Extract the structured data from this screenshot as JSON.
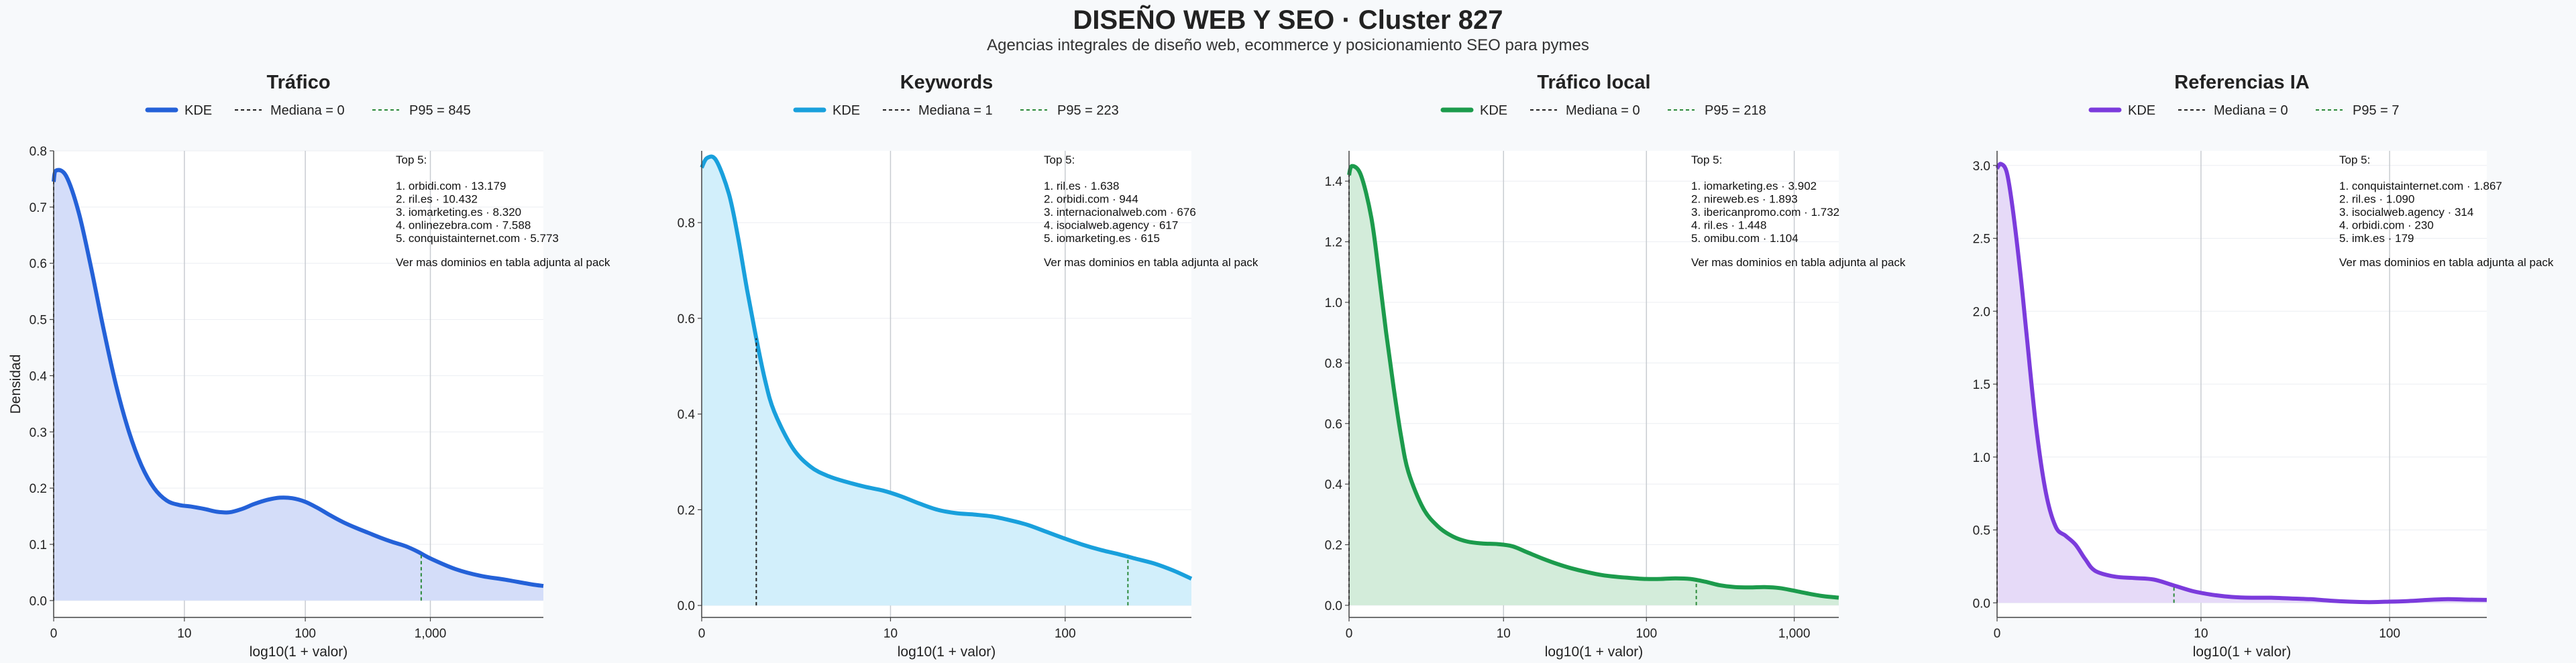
{
  "title": "DISEÑO WEB Y SEO · Cluster 827",
  "subtitle": "Agencias integrales de diseño web, ecommerce y posicionamiento SEO para pymes",
  "y_axis_label": "Densidad",
  "legend_labels": {
    "kde": "KDE"
  },
  "chart_data": [
    {
      "type": "area",
      "title": "Tráfico",
      "xlabel": "log10(1 + valor)",
      "ylabel": "Densidad",
      "xlim": [
        0,
        3.9
      ],
      "ylim": [
        -0.03,
        0.8
      ],
      "yticks": [
        0.0,
        0.1,
        0.2,
        0.3,
        0.4,
        0.5,
        0.6,
        0.7,
        0.8
      ],
      "ytick_labels": [
        "0.0",
        "0.1",
        "0.2",
        "0.3",
        "0.4",
        "0.5",
        "0.6",
        "0.7",
        "0.8"
      ],
      "xticks": [
        0,
        1.041,
        2.004,
        3.0
      ],
      "xtick_labels": [
        "0",
        "10",
        "100",
        "1,000"
      ],
      "color": "#2461d8",
      "fill": "#d4ddf9",
      "kde": {
        "x": [
          0,
          0.02,
          0.1,
          0.2,
          0.3,
          0.4,
          0.5,
          0.6,
          0.7,
          0.8,
          0.9,
          1.0,
          1.1,
          1.2,
          1.3,
          1.4,
          1.5,
          1.6,
          1.7,
          1.8,
          1.9,
          2.0,
          2.1,
          2.2,
          2.3,
          2.4,
          2.5,
          2.6,
          2.7,
          2.8,
          2.9,
          3.0,
          3.2,
          3.4,
          3.6,
          3.8,
          3.9
        ],
        "y": [
          0.745,
          0.765,
          0.755,
          0.69,
          0.59,
          0.48,
          0.38,
          0.3,
          0.24,
          0.2,
          0.178,
          0.17,
          0.167,
          0.163,
          0.158,
          0.157,
          0.163,
          0.172,
          0.179,
          0.183,
          0.182,
          0.176,
          0.165,
          0.152,
          0.14,
          0.13,
          0.121,
          0.112,
          0.104,
          0.097,
          0.087,
          0.075,
          0.056,
          0.044,
          0.037,
          0.029,
          0.026
        ]
      },
      "median": {
        "label": "Mediana = 0",
        "value": 0
      },
      "p95": {
        "label": "P95 = 845",
        "value": 2.927
      },
      "top_title": "Top 5:",
      "top": [
        "1. orbidi.com · 13.179",
        "2. ril.es · 10.432",
        "3. iomarketing.es · 8.320",
        "4. onlinezebra.com · 7.588",
        "5. conquistainternet.com · 5.773"
      ],
      "footnote": "Ver mas dominios en tabla adjunta al pack"
    },
    {
      "type": "area",
      "title": "Keywords",
      "xlabel": "log10(1 + valor)",
      "ylabel": "",
      "xlim": [
        0,
        2.7
      ],
      "ylim": [
        -0.025,
        0.95
      ],
      "yticks": [
        0.0,
        0.2,
        0.4,
        0.6,
        0.8
      ],
      "ytick_labels": [
        "0.0",
        "0.2",
        "0.4",
        "0.6",
        "0.8"
      ],
      "xticks": [
        0,
        1.041,
        2.004
      ],
      "xtick_labels": [
        "0",
        "10",
        "100"
      ],
      "color": "#19a0dc",
      "fill": "#d2effb",
      "kde": {
        "x": [
          0,
          0.03,
          0.08,
          0.15,
          0.2,
          0.25,
          0.3,
          0.35,
          0.4,
          0.5,
          0.6,
          0.7,
          0.8,
          0.9,
          1.0,
          1.1,
          1.2,
          1.3,
          1.4,
          1.5,
          1.6,
          1.7,
          1.8,
          1.9,
          2.0,
          2.1,
          2.2,
          2.3,
          2.4,
          2.5,
          2.6,
          2.7
        ],
        "y": [
          0.915,
          0.935,
          0.93,
          0.86,
          0.77,
          0.66,
          0.56,
          0.47,
          0.405,
          0.33,
          0.29,
          0.27,
          0.258,
          0.248,
          0.24,
          0.228,
          0.213,
          0.2,
          0.193,
          0.19,
          0.186,
          0.178,
          0.168,
          0.154,
          0.14,
          0.127,
          0.116,
          0.107,
          0.097,
          0.087,
          0.073,
          0.056
        ]
      },
      "median": {
        "label": "Mediana = 1",
        "value": 0.301
      },
      "p95": {
        "label": "P95 = 223",
        "value": 2.35
      },
      "top_title": "Top 5:",
      "top": [
        "1. ril.es · 1.638",
        "2. orbidi.com · 944",
        "3. internacionalweb.com · 676",
        "4. isocialweb.agency · 617",
        "5. iomarketing.es · 615"
      ],
      "footnote": "Ver mas dominios en tabla adjunta al pack"
    },
    {
      "type": "area",
      "title": "Tráfico local",
      "xlabel": "log10(1 + valor)",
      "ylabel": "",
      "xlim": [
        0,
        3.3
      ],
      "ylim": [
        -0.04,
        1.5
      ],
      "yticks": [
        0.0,
        0.2,
        0.4,
        0.6,
        0.8,
        1.0,
        1.2,
        1.4
      ],
      "ytick_labels": [
        "0.0",
        "0.2",
        "0.4",
        "0.6",
        "0.8",
        "1.0",
        "1.2",
        "1.4"
      ],
      "xticks": [
        0,
        1.041,
        2.004,
        3.0
      ],
      "xtick_labels": [
        "0",
        "10",
        "100",
        "1,000"
      ],
      "color": "#1c9b4c",
      "fill": "#d3ecda",
      "kde": {
        "x": [
          0,
          0.02,
          0.08,
          0.15,
          0.2,
          0.25,
          0.3,
          0.35,
          0.4,
          0.5,
          0.6,
          0.7,
          0.8,
          0.9,
          1.0,
          1.1,
          1.2,
          1.3,
          1.4,
          1.5,
          1.6,
          1.7,
          1.8,
          1.9,
          2.0,
          2.1,
          2.2,
          2.3,
          2.4,
          2.5,
          2.6,
          2.7,
          2.8,
          2.9,
          3.0,
          3.1,
          3.2,
          3.3
        ],
        "y": [
          1.42,
          1.45,
          1.42,
          1.28,
          1.1,
          0.9,
          0.72,
          0.56,
          0.44,
          0.32,
          0.26,
          0.227,
          0.21,
          0.204,
          0.202,
          0.195,
          0.175,
          0.155,
          0.137,
          0.122,
          0.11,
          0.1,
          0.094,
          0.09,
          0.087,
          0.087,
          0.089,
          0.087,
          0.078,
          0.066,
          0.06,
          0.059,
          0.06,
          0.057,
          0.048,
          0.038,
          0.03,
          0.025
        ]
      },
      "median": {
        "label": "Mediana = 0",
        "value": 0
      },
      "p95": {
        "label": "P95 = 218",
        "value": 2.34
      },
      "top_title": "Top 5:",
      "top": [
        "1. iomarketing.es · 3.902",
        "2. nireweb.es · 1.893",
        "3. ibericanpromo.com · 1.732",
        "4. ril.es · 1.448",
        "5. omibu.com · 1.104"
      ],
      "footnote": "Ver mas dominios en tabla adjunta al pack"
    },
    {
      "type": "area",
      "title": "Referencias IA",
      "xlabel": "log10(1 + valor)",
      "ylabel": "",
      "xlim": [
        0,
        2.5
      ],
      "ylim": [
        -0.1,
        3.1
      ],
      "yticks": [
        0.0,
        0.5,
        1.0,
        1.5,
        2.0,
        2.5,
        3.0
      ],
      "ytick_labels": [
        "0.0",
        "0.5",
        "1.0",
        "1.5",
        "2.0",
        "2.5",
        "3.0"
      ],
      "xticks": [
        0,
        1.041,
        2.004
      ],
      "xtick_labels": [
        "0",
        "10",
        "100"
      ],
      "color": "#7b3bdc",
      "fill": "#e6daf8",
      "kde": {
        "x": [
          0,
          0.02,
          0.05,
          0.08,
          0.12,
          0.15,
          0.2,
          0.25,
          0.3,
          0.35,
          0.4,
          0.45,
          0.5,
          0.6,
          0.7,
          0.8,
          0.9,
          1.0,
          1.1,
          1.2,
          1.3,
          1.4,
          1.5,
          1.6,
          1.7,
          1.8,
          1.9,
          2.0,
          2.1,
          2.2,
          2.3,
          2.4,
          2.5
        ],
        "y": [
          2.98,
          3.01,
          2.95,
          2.7,
          2.25,
          1.85,
          1.2,
          0.75,
          0.52,
          0.46,
          0.4,
          0.3,
          0.22,
          0.18,
          0.17,
          0.16,
          0.12,
          0.08,
          0.055,
          0.04,
          0.035,
          0.035,
          0.03,
          0.025,
          0.015,
          0.008,
          0.005,
          0.008,
          0.012,
          0.02,
          0.025,
          0.022,
          0.02
        ]
      },
      "median": {
        "label": "Mediana = 0",
        "value": 0
      },
      "p95": {
        "label": "P95 = 7",
        "value": 0.903
      },
      "top_title": "Top 5:",
      "top": [
        "1. conquistainternet.com · 1.867",
        "2. ril.es · 1.090",
        "3. isocialweb.agency · 314",
        "4. orbidi.com · 230",
        "5. imk.es · 179"
      ],
      "footnote": "Ver mas dominios en tabla adjunta al pack"
    }
  ]
}
